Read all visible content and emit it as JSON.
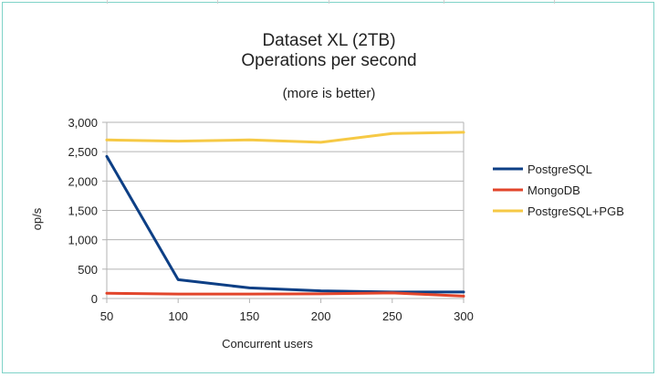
{
  "chart_data": {
    "type": "line",
    "title_lines": [
      "Dataset XL (2TB)",
      "Operations per second"
    ],
    "subtitle": "(more is better)",
    "xlabel": "Concurrent users",
    "ylabel": "op/s",
    "x": [
      50,
      100,
      150,
      200,
      250,
      300
    ],
    "x_ticks": [
      "50",
      "100",
      "150",
      "200",
      "250",
      "300"
    ],
    "xlim": [
      50,
      300
    ],
    "ylim": [
      0,
      3000
    ],
    "y_ticks": [
      0,
      500,
      1000,
      1500,
      2000,
      2500,
      3000
    ],
    "y_tick_labels": [
      "0",
      "500",
      "1,000",
      "1,500",
      "2,000",
      "2,500",
      "3,000"
    ],
    "grid": true,
    "legend_position": "right",
    "series": [
      {
        "name": "PostgreSQL",
        "color": "#0d3f85",
        "values": [
          2420,
          320,
          180,
          130,
          110,
          110
        ]
      },
      {
        "name": "MongoDB",
        "color": "#e2452b",
        "values": [
          90,
          75,
          75,
          80,
          95,
          40
        ]
      },
      {
        "name": "PostgreSQL+PGB",
        "color": "#f6c945",
        "values": [
          2700,
          2680,
          2700,
          2660,
          2810,
          2830
        ]
      }
    ]
  }
}
